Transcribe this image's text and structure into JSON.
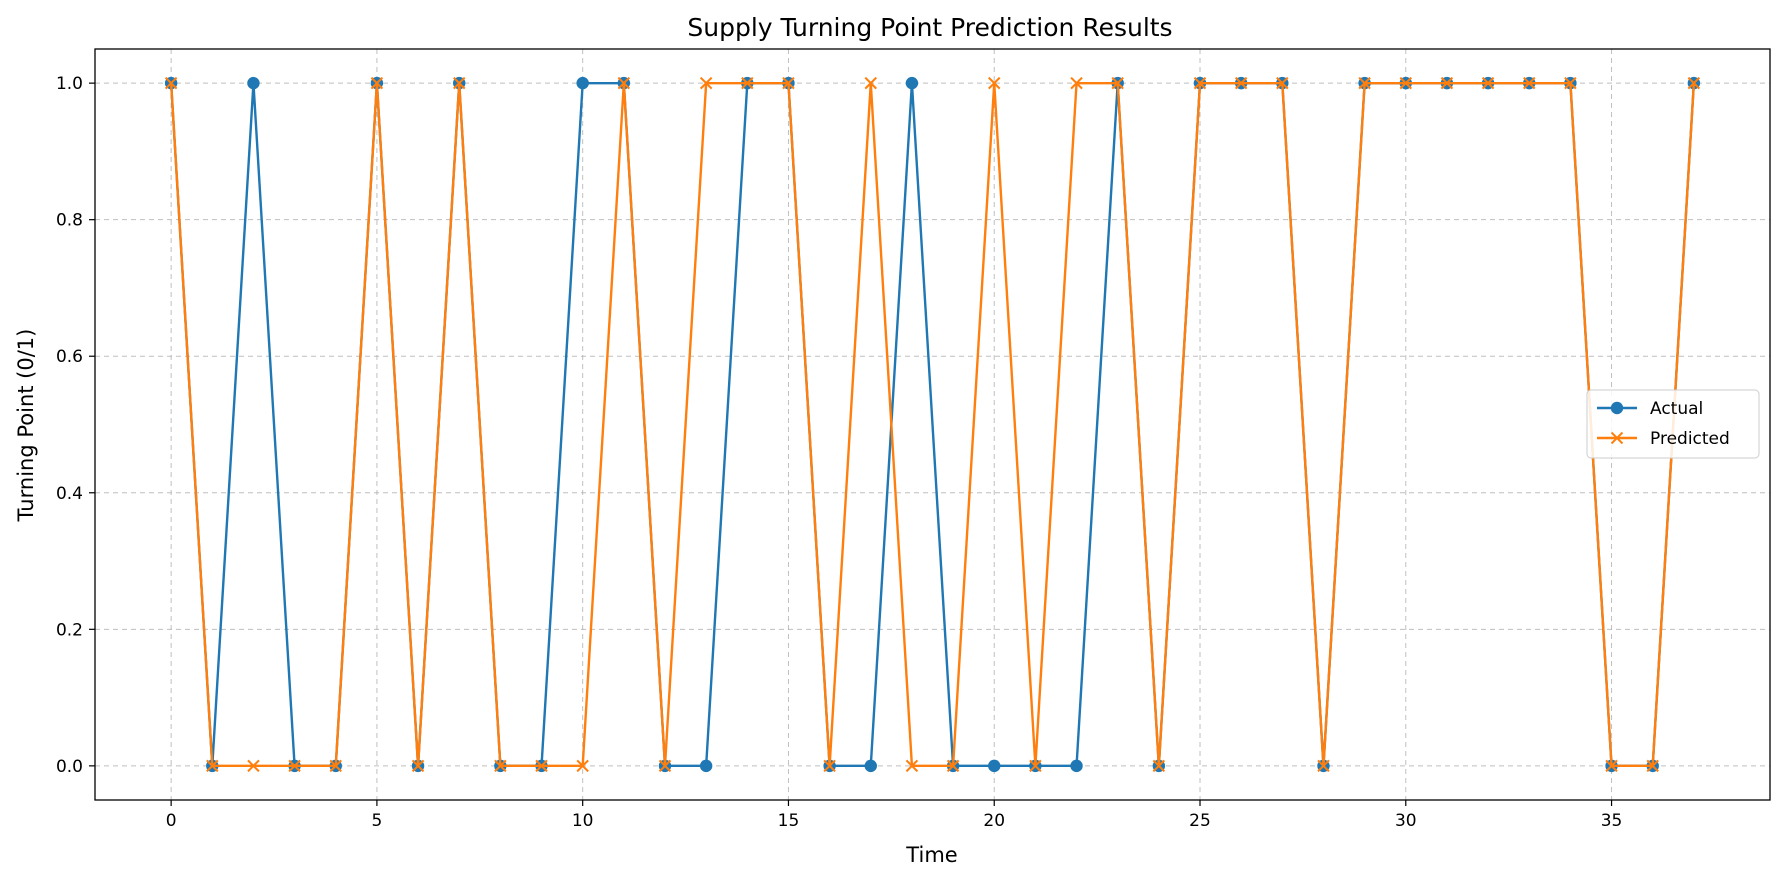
{
  "chart_data": {
    "type": "line",
    "title": "Supply Turning Point Prediction Results",
    "xlabel": "Time",
    "ylabel": "Turning Point (0/1)",
    "xlim": [
      -1.85,
      38.85
    ],
    "ylim": [
      -0.05,
      1.05
    ],
    "xticks": [
      0,
      5,
      10,
      15,
      20,
      25,
      30,
      35
    ],
    "yticks": [
      0.0,
      0.2,
      0.4,
      0.6,
      0.8,
      1.0
    ],
    "ytick_labels": [
      "0.0",
      "0.2",
      "0.4",
      "0.6",
      "0.8",
      "1.0"
    ],
    "grid": true,
    "legend_position": "center-right",
    "x": [
      0,
      1,
      2,
      3,
      4,
      5,
      6,
      7,
      8,
      9,
      10,
      11,
      12,
      13,
      14,
      15,
      16,
      17,
      18,
      19,
      20,
      21,
      22,
      23,
      24,
      25,
      26,
      27,
      28,
      29,
      30,
      31,
      32,
      33,
      34,
      35,
      36,
      37
    ],
    "series": [
      {
        "name": "Actual",
        "color": "#1f77b4",
        "marker": "circle",
        "values": [
          1,
          0,
          1,
          0,
          0,
          1,
          0,
          1,
          0,
          0,
          1,
          1,
          0,
          0,
          1,
          1,
          0,
          0,
          1,
          0,
          0,
          0,
          0,
          1,
          0,
          1,
          1,
          1,
          0,
          1,
          1,
          1,
          1,
          1,
          1,
          0,
          0,
          1
        ]
      },
      {
        "name": "Predicted",
        "color": "#ff7f0e",
        "marker": "x",
        "values": [
          1,
          0,
          0,
          0,
          0,
          1,
          0,
          1,
          0,
          0,
          0,
          1,
          0,
          1,
          1,
          1,
          0,
          1,
          0,
          0,
          1,
          0,
          1,
          1,
          0,
          1,
          1,
          1,
          0,
          1,
          1,
          1,
          1,
          1,
          1,
          0,
          0,
          1
        ]
      }
    ]
  }
}
